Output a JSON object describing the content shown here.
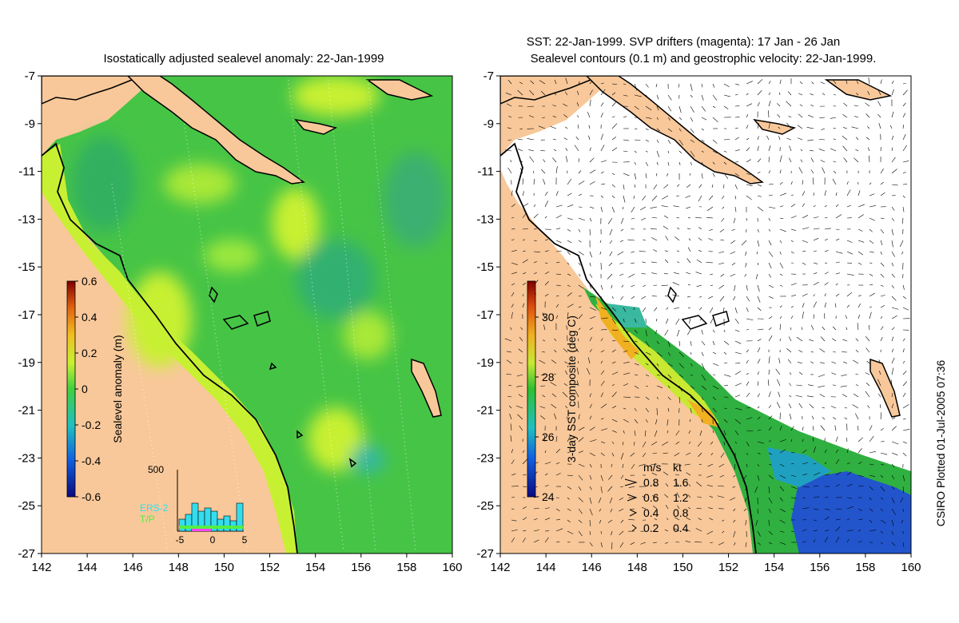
{
  "left_panel": {
    "title": "Isostatically adjusted sealevel anomaly: 22-Jan-1999",
    "colorbar": {
      "label": "Sealevel anomaly (m)",
      "min": -0.6,
      "max": 0.6,
      "ticks": [
        "0.6",
        "0.4",
        "0.2",
        "0",
        "-0.2",
        "-0.4",
        "-0.6"
      ],
      "tick_values": [
        0.6,
        0.4,
        0.2,
        0,
        -0.2,
        -0.4,
        -0.6
      ]
    },
    "histogram": {
      "ymax_label": "500",
      "xticks": [
        "-5",
        "0",
        "5"
      ],
      "legend": [
        {
          "label": "ERS-2",
          "color": "#33ddee"
        },
        {
          "label": "T/P",
          "color": "#55ee44"
        }
      ]
    }
  },
  "right_panel": {
    "title_line1": "SST: 22-Jan-1999. SVP drifters (magenta): 17 Jan - 26 Jan",
    "title_line2": "Sealevel contours (0.1 m) and geostrophic velocity: 22-Jan-1999.",
    "colorbar": {
      "label": "3-day SST composite (deg C)",
      "min": 24,
      "max": 31.2,
      "ticks": [
        "30",
        "28",
        "26",
        "24"
      ],
      "tick_values": [
        30,
        28,
        26,
        24
      ]
    },
    "velocity_legend": {
      "header_ms": "m/s",
      "header_kt": "kt",
      "rows": [
        {
          "ms": "0.8",
          "kt": "1.6"
        },
        {
          "ms": "0.6",
          "kt": "1.2"
        },
        {
          "ms": "0.4",
          "kt": "0.8"
        },
        {
          "ms": "0.2",
          "kt": "0.4"
        }
      ]
    }
  },
  "axes": {
    "lon_ticks": [
      "142",
      "144",
      "146",
      "148",
      "150",
      "152",
      "154",
      "156",
      "158",
      "160"
    ],
    "lat_ticks": [
      "-7",
      "-9",
      "-11",
      "-13",
      "-15",
      "-17",
      "-19",
      "-21",
      "-23",
      "-25",
      "-27"
    ],
    "lon_range": [
      142,
      160
    ],
    "lat_range": [
      -27,
      -7
    ]
  },
  "credit": "CSIRO Plotted 01-Jul-2005 07:36",
  "colors": {
    "land": "#f8c89a",
    "ocean_green": "#44c844",
    "ocean_yellow": "#c8f032",
    "ocean_cyan": "#3ab890",
    "sst_blue": "#2255cc"
  }
}
